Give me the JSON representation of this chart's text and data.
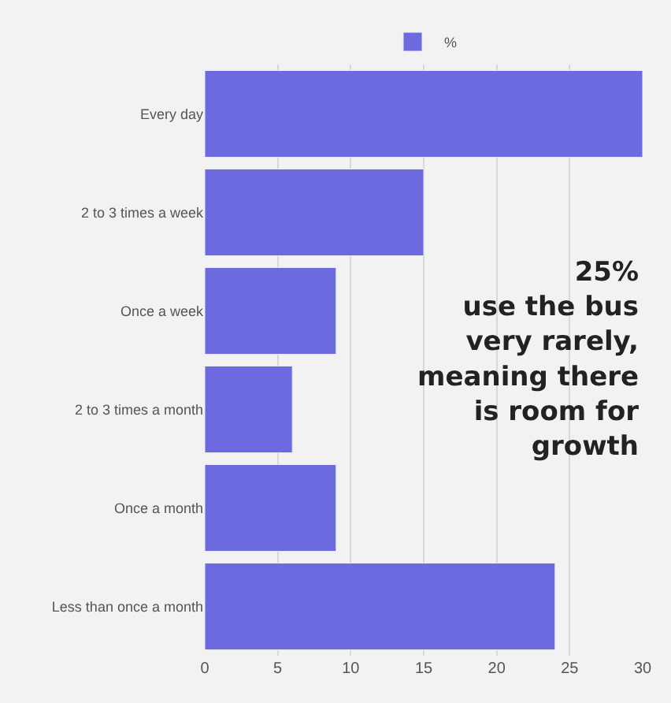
{
  "chart_data": {
    "type": "bar",
    "orientation": "horizontal",
    "categories": [
      "Every day",
      "2 to 3 times a week",
      "Once a week",
      "2 to 3 times a month",
      "Once a month",
      "Less than once a month"
    ],
    "series": [
      {
        "name": "%",
        "color": "#6d6ae0",
        "values": [
          30,
          15,
          9,
          6,
          9,
          24
        ]
      }
    ],
    "xlim": [
      0,
      30
    ],
    "xticks": [
      0,
      5,
      10,
      15,
      20,
      25,
      30
    ],
    "grid": "x",
    "legend": "top",
    "annotations": [
      "25%\nuse the bus\nvery rarely,\nmeaning there\nis room for\ngrowth"
    ]
  }
}
